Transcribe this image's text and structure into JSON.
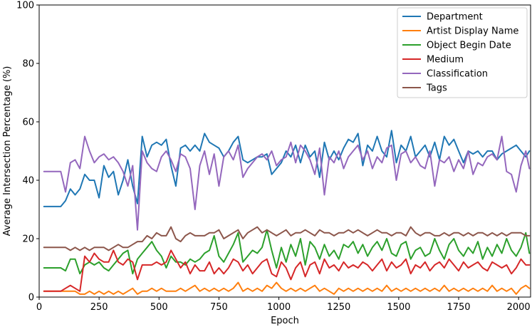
{
  "chart_data": {
    "type": "line",
    "title": "",
    "xlabel": "Epoch",
    "ylabel": "Average Intersection Percentage (%)",
    "xlim": [
      0,
      2050
    ],
    "ylim": [
      0,
      100
    ],
    "xticks": [
      0,
      250,
      500,
      750,
      1000,
      1250,
      1500,
      1750,
      2000
    ],
    "yticks": [
      0,
      20,
      40,
      60,
      80,
      100
    ],
    "grid": false,
    "legend_position": "top-right",
    "x": [
      20,
      60,
      90,
      110,
      130,
      150,
      170,
      190,
      210,
      230,
      250,
      270,
      290,
      310,
      330,
      350,
      370,
      390,
      410,
      430,
      450,
      470,
      490,
      510,
      530,
      550,
      570,
      590,
      610,
      630,
      650,
      670,
      690,
      710,
      730,
      750,
      770,
      790,
      810,
      830,
      850,
      870,
      890,
      910,
      930,
      950,
      970,
      990,
      1010,
      1030,
      1050,
      1070,
      1090,
      1110,
      1130,
      1150,
      1170,
      1190,
      1210,
      1230,
      1250,
      1270,
      1290,
      1310,
      1330,
      1350,
      1370,
      1390,
      1410,
      1430,
      1450,
      1470,
      1490,
      1510,
      1530,
      1550,
      1570,
      1590,
      1610,
      1630,
      1650,
      1670,
      1690,
      1710,
      1730,
      1750,
      1770,
      1790,
      1810,
      1830,
      1850,
      1870,
      1890,
      1910,
      1930,
      1950,
      1970,
      1990,
      2010,
      2030,
      2045
    ],
    "series": [
      {
        "name": "Department",
        "color": "#1f77b4",
        "values": [
          31,
          31,
          31,
          33,
          37,
          35,
          37,
          42,
          40,
          40,
          34,
          45,
          41,
          43,
          35,
          40,
          47,
          38,
          32,
          55,
          48,
          52,
          53,
          52,
          54,
          45,
          38,
          51,
          52,
          50,
          52,
          50,
          56,
          53,
          52,
          51,
          48,
          50,
          53,
          55,
          47,
          46,
          47,
          48,
          48,
          49,
          42,
          44,
          46,
          50,
          48,
          52,
          46,
          52,
          48,
          50,
          41,
          53,
          47,
          50,
          47,
          51,
          54,
          53,
          56,
          45,
          52,
          50,
          55,
          50,
          48,
          57,
          46,
          52,
          50,
          55,
          48,
          50,
          52,
          48,
          53,
          47,
          55,
          52,
          54,
          50,
          46,
          50,
          49,
          50,
          48,
          50,
          50,
          47,
          49,
          50,
          51,
          52,
          50,
          48,
          50
        ]
      },
      {
        "name": "Artist Display Name",
        "color": "#ff7f0e",
        "values": [
          2,
          2,
          2,
          2,
          2,
          2,
          1,
          1,
          2,
          1,
          2,
          1,
          2,
          1,
          2,
          1,
          2,
          3,
          1,
          2,
          2,
          3,
          2,
          3,
          2,
          2,
          2,
          3,
          2,
          3,
          4,
          2,
          3,
          2,
          3,
          2,
          3,
          2,
          3,
          5,
          2,
          3,
          2,
          3,
          2,
          4,
          3,
          5,
          3,
          2,
          3,
          2,
          3,
          2,
          3,
          4,
          2,
          3,
          2,
          1,
          3,
          2,
          3,
          2,
          3,
          2,
          3,
          2,
          3,
          2,
          4,
          2,
          3,
          2,
          3,
          2,
          3,
          2,
          3,
          2,
          3,
          2,
          4,
          2,
          3,
          2,
          3,
          2,
          3,
          2,
          3,
          2,
          4,
          2,
          3,
          2,
          3,
          1,
          3,
          4,
          3
        ]
      },
      {
        "name": "Object Begin Date",
        "color": "#2ca02c",
        "values": [
          10,
          10,
          10,
          9,
          13,
          13,
          8,
          11,
          12,
          11,
          12,
          10,
          9,
          11,
          13,
          15,
          16,
          8,
          13,
          15,
          17,
          19,
          16,
          14,
          10,
          14,
          12,
          12,
          11,
          13,
          12,
          13,
          15,
          16,
          21,
          14,
          12,
          15,
          18,
          22,
          12,
          14,
          16,
          15,
          17,
          23,
          16,
          10,
          17,
          12,
          18,
          14,
          20,
          11,
          19,
          17,
          13,
          18,
          14,
          16,
          13,
          18,
          17,
          19,
          15,
          18,
          14,
          17,
          19,
          16,
          20,
          15,
          14,
          18,
          19,
          13,
          16,
          17,
          14,
          15,
          20,
          16,
          13,
          18,
          20,
          16,
          14,
          17,
          15,
          19,
          13,
          17,
          14,
          18,
          15,
          20,
          16,
          14,
          17,
          22,
          15
        ]
      },
      {
        "name": "Medium",
        "color": "#d62728",
        "values": [
          2,
          2,
          2,
          3,
          4,
          3,
          2,
          14,
          12,
          15,
          13,
          12,
          12,
          16,
          12,
          11,
          13,
          12,
          6,
          11,
          11,
          11,
          12,
          11,
          12,
          16,
          13,
          10,
          12,
          8,
          11,
          9,
          9,
          12,
          8,
          10,
          8,
          10,
          13,
          12,
          9,
          11,
          8,
          10,
          12,
          13,
          8,
          7,
          12,
          10,
          6,
          10,
          12,
          7,
          11,
          12,
          8,
          13,
          10,
          11,
          9,
          12,
          10,
          11,
          10,
          12,
          11,
          9,
          11,
          13,
          9,
          12,
          10,
          11,
          13,
          8,
          11,
          10,
          12,
          9,
          11,
          12,
          10,
          13,
          11,
          9,
          12,
          10,
          11,
          12,
          10,
          9,
          12,
          11,
          10,
          11,
          8,
          10,
          13,
          11,
          11
        ]
      },
      {
        "name": "Classification",
        "color": "#9467bd",
        "values": [
          43,
          43,
          43,
          36,
          46,
          47,
          44,
          55,
          50,
          46,
          48,
          49,
          47,
          48,
          46,
          43,
          38,
          45,
          23,
          50,
          46,
          44,
          43,
          48,
          50,
          47,
          43,
          49,
          48,
          44,
          30,
          45,
          50,
          42,
          49,
          38,
          48,
          50,
          47,
          52,
          41,
          44,
          46,
          48,
          49,
          47,
          50,
          45,
          47,
          48,
          53,
          46,
          52,
          50,
          47,
          42,
          51,
          35,
          48,
          46,
          50,
          44,
          48,
          50,
          52,
          47,
          50,
          44,
          48,
          46,
          51,
          52,
          40,
          49,
          50,
          46,
          48,
          45,
          44,
          50,
          38,
          47,
          46,
          48,
          43,
          47,
          44,
          50,
          42,
          46,
          45,
          48,
          49,
          47,
          55,
          43,
          42,
          36,
          45,
          50,
          44
        ]
      },
      {
        "name": "Tags",
        "color": "#8c564b",
        "values": [
          17,
          17,
          17,
          17,
          16,
          17,
          16,
          17,
          16,
          17,
          17,
          17,
          16,
          17,
          18,
          17,
          17,
          18,
          19,
          19,
          21,
          20,
          22,
          21,
          21,
          24,
          20,
          19,
          21,
          22,
          21,
          21,
          21,
          22,
          22,
          23,
          20,
          21,
          22,
          23,
          20,
          22,
          23,
          24,
          22,
          23,
          22,
          21,
          22,
          23,
          21,
          22,
          22,
          23,
          22,
          21,
          23,
          22,
          22,
          21,
          22,
          22,
          23,
          22,
          23,
          22,
          21,
          22,
          23,
          22,
          22,
          21,
          22,
          22,
          21,
          24,
          22,
          21,
          22,
          22,
          21,
          21,
          22,
          21,
          22,
          22,
          21,
          22,
          21,
          22,
          22,
          21,
          22,
          21,
          22,
          21,
          22,
          22,
          22,
          21,
          21
        ]
      }
    ]
  }
}
